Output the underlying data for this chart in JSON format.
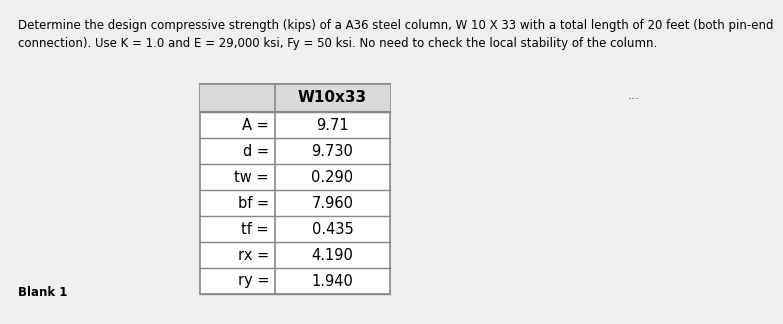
{
  "title_text": "Determine the design compressive strength (kips) of a A36 steel column, W 10 X 33 with a total length of 20 feet (both pin-end\nconnection). Use K = 1.0 and E = 29,000 ksi, Fy = 50 ksi. No need to check the local stability of the column.",
  "col_header": "W10x33",
  "rows": [
    {
      "label": "A =",
      "value": "9.71"
    },
    {
      "label": "d =",
      "value": "9.730"
    },
    {
      "label": "tw =",
      "value": "0.290"
    },
    {
      "label": "bf =",
      "value": "7.960"
    },
    {
      "label": "tf =",
      "value": "0.435"
    },
    {
      "label": "rx =",
      "value": "4.190"
    },
    {
      "label": "ry =",
      "value": "1.940"
    }
  ],
  "blank_label": "Blank 1",
  "dots": "...",
  "bg_color": "#f0f0f0",
  "table_bg": "#ffffff",
  "header_bg": "#d9d9d9",
  "text_color": "#000000",
  "border_color": "#888888",
  "title_fontsize": 8.5,
  "header_fontsize": 11,
  "cell_fontsize": 10.5,
  "blank_fontsize": 8.5,
  "fig_width": 6.48,
  "fig_height": 3.04
}
